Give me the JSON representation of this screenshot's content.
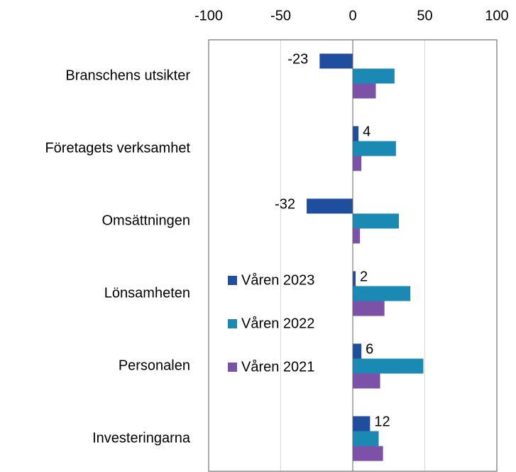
{
  "chart_data": {
    "type": "bar",
    "orientation": "horizontal",
    "categories": [
      "Branschens utsikter",
      "Företagets verksamhet",
      "Omsättningen",
      "Lönsamheten",
      "Personalen",
      "Investeringarna"
    ],
    "series": [
      {
        "name": "Våren 2023",
        "color": "#1f4e9e",
        "values": [
          -23,
          4,
          -32,
          2,
          6,
          12
        ],
        "show_labels": true
      },
      {
        "name": "Våren 2022",
        "color": "#1a8ab5",
        "values": [
          29,
          30,
          32,
          40,
          49,
          18
        ],
        "show_labels": false
      },
      {
        "name": "Våren 2021",
        "color": "#7b52a8",
        "values": [
          16,
          6,
          5,
          22,
          19,
          21
        ],
        "show_labels": false
      }
    ],
    "xlim": [
      -100,
      100
    ],
    "xticks": [
      -100,
      -50,
      0,
      50,
      100
    ],
    "grid": true,
    "legend": "inside-left"
  }
}
